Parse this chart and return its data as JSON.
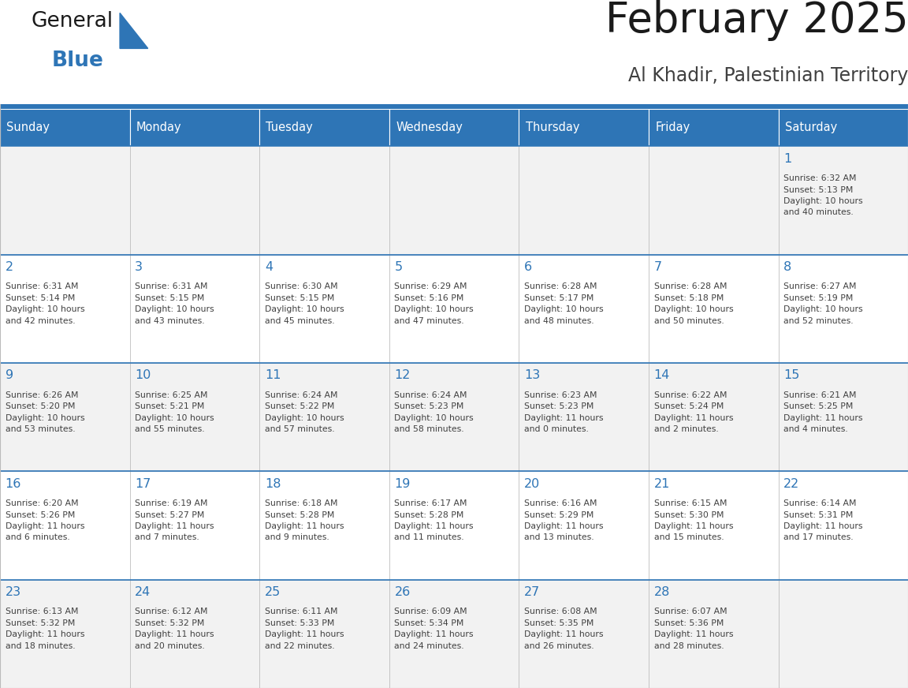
{
  "title": "February 2025",
  "subtitle": "Al Khadir, Palestinian Territory",
  "header_bg": "#2E75B6",
  "header_text": "#FFFFFF",
  "cell_bg": "#FFFFFF",
  "day_text_color": "#2E75B6",
  "info_text_color": "#404040",
  "separator_color": "#2E75B6",
  "days_of_week": [
    "Sunday",
    "Monday",
    "Tuesday",
    "Wednesday",
    "Thursday",
    "Friday",
    "Saturday"
  ],
  "weeks": [
    [
      {
        "day": null,
        "info": ""
      },
      {
        "day": null,
        "info": ""
      },
      {
        "day": null,
        "info": ""
      },
      {
        "day": null,
        "info": ""
      },
      {
        "day": null,
        "info": ""
      },
      {
        "day": null,
        "info": ""
      },
      {
        "day": "1",
        "info": "Sunrise: 6:32 AM\nSunset: 5:13 PM\nDaylight: 10 hours\nand 40 minutes."
      }
    ],
    [
      {
        "day": "2",
        "info": "Sunrise: 6:31 AM\nSunset: 5:14 PM\nDaylight: 10 hours\nand 42 minutes."
      },
      {
        "day": "3",
        "info": "Sunrise: 6:31 AM\nSunset: 5:15 PM\nDaylight: 10 hours\nand 43 minutes."
      },
      {
        "day": "4",
        "info": "Sunrise: 6:30 AM\nSunset: 5:15 PM\nDaylight: 10 hours\nand 45 minutes."
      },
      {
        "day": "5",
        "info": "Sunrise: 6:29 AM\nSunset: 5:16 PM\nDaylight: 10 hours\nand 47 minutes."
      },
      {
        "day": "6",
        "info": "Sunrise: 6:28 AM\nSunset: 5:17 PM\nDaylight: 10 hours\nand 48 minutes."
      },
      {
        "day": "7",
        "info": "Sunrise: 6:28 AM\nSunset: 5:18 PM\nDaylight: 10 hours\nand 50 minutes."
      },
      {
        "day": "8",
        "info": "Sunrise: 6:27 AM\nSunset: 5:19 PM\nDaylight: 10 hours\nand 52 minutes."
      }
    ],
    [
      {
        "day": "9",
        "info": "Sunrise: 6:26 AM\nSunset: 5:20 PM\nDaylight: 10 hours\nand 53 minutes."
      },
      {
        "day": "10",
        "info": "Sunrise: 6:25 AM\nSunset: 5:21 PM\nDaylight: 10 hours\nand 55 minutes."
      },
      {
        "day": "11",
        "info": "Sunrise: 6:24 AM\nSunset: 5:22 PM\nDaylight: 10 hours\nand 57 minutes."
      },
      {
        "day": "12",
        "info": "Sunrise: 6:24 AM\nSunset: 5:23 PM\nDaylight: 10 hours\nand 58 minutes."
      },
      {
        "day": "13",
        "info": "Sunrise: 6:23 AM\nSunset: 5:23 PM\nDaylight: 11 hours\nand 0 minutes."
      },
      {
        "day": "14",
        "info": "Sunrise: 6:22 AM\nSunset: 5:24 PM\nDaylight: 11 hours\nand 2 minutes."
      },
      {
        "day": "15",
        "info": "Sunrise: 6:21 AM\nSunset: 5:25 PM\nDaylight: 11 hours\nand 4 minutes."
      }
    ],
    [
      {
        "day": "16",
        "info": "Sunrise: 6:20 AM\nSunset: 5:26 PM\nDaylight: 11 hours\nand 6 minutes."
      },
      {
        "day": "17",
        "info": "Sunrise: 6:19 AM\nSunset: 5:27 PM\nDaylight: 11 hours\nand 7 minutes."
      },
      {
        "day": "18",
        "info": "Sunrise: 6:18 AM\nSunset: 5:28 PM\nDaylight: 11 hours\nand 9 minutes."
      },
      {
        "day": "19",
        "info": "Sunrise: 6:17 AM\nSunset: 5:28 PM\nDaylight: 11 hours\nand 11 minutes."
      },
      {
        "day": "20",
        "info": "Sunrise: 6:16 AM\nSunset: 5:29 PM\nDaylight: 11 hours\nand 13 minutes."
      },
      {
        "day": "21",
        "info": "Sunrise: 6:15 AM\nSunset: 5:30 PM\nDaylight: 11 hours\nand 15 minutes."
      },
      {
        "day": "22",
        "info": "Sunrise: 6:14 AM\nSunset: 5:31 PM\nDaylight: 11 hours\nand 17 minutes."
      }
    ],
    [
      {
        "day": "23",
        "info": "Sunrise: 6:13 AM\nSunset: 5:32 PM\nDaylight: 11 hours\nand 18 minutes."
      },
      {
        "day": "24",
        "info": "Sunrise: 6:12 AM\nSunset: 5:32 PM\nDaylight: 11 hours\nand 20 minutes."
      },
      {
        "day": "25",
        "info": "Sunrise: 6:11 AM\nSunset: 5:33 PM\nDaylight: 11 hours\nand 22 minutes."
      },
      {
        "day": "26",
        "info": "Sunrise: 6:09 AM\nSunset: 5:34 PM\nDaylight: 11 hours\nand 24 minutes."
      },
      {
        "day": "27",
        "info": "Sunrise: 6:08 AM\nSunset: 5:35 PM\nDaylight: 11 hours\nand 26 minutes."
      },
      {
        "day": "28",
        "info": "Sunrise: 6:07 AM\nSunset: 5:36 PM\nDaylight: 11 hours\nand 28 minutes."
      },
      {
        "day": null,
        "info": ""
      }
    ]
  ]
}
